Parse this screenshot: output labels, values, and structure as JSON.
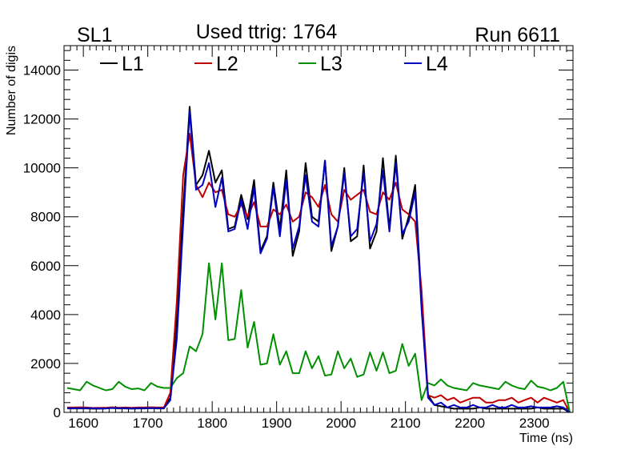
{
  "header": {
    "left": "SL1",
    "center": "Used ttrig: 1764",
    "right": "Run 6611"
  },
  "chart_data": {
    "type": "line",
    "xlabel": "Time (ns)",
    "ylabel": "Number of digis",
    "xlim": [
      1570,
      2360
    ],
    "ylim": [
      0,
      15000
    ],
    "x_ticks": [
      1600,
      1700,
      1800,
      1900,
      2000,
      2100,
      2200,
      2300
    ],
    "y_ticks": [
      0,
      2000,
      4000,
      6000,
      8000,
      10000,
      12000,
      14000
    ],
    "legend_position": "top-left",
    "grid": false,
    "x": [
      1575,
      1585,
      1595,
      1605,
      1615,
      1625,
      1635,
      1645,
      1655,
      1665,
      1675,
      1685,
      1695,
      1705,
      1715,
      1725,
      1735,
      1745,
      1755,
      1765,
      1775,
      1785,
      1795,
      1805,
      1815,
      1825,
      1835,
      1845,
      1855,
      1865,
      1875,
      1885,
      1895,
      1905,
      1915,
      1925,
      1935,
      1945,
      1955,
      1965,
      1975,
      1985,
      1995,
      2005,
      2015,
      2025,
      2035,
      2045,
      2055,
      2065,
      2075,
      2085,
      2095,
      2105,
      2115,
      2125,
      2135,
      2145,
      2155,
      2165,
      2175,
      2185,
      2195,
      2205,
      2215,
      2225,
      2235,
      2245,
      2255,
      2265,
      2275,
      2285,
      2295,
      2305,
      2315,
      2325,
      2335,
      2345,
      2355
    ],
    "series": [
      {
        "name": "L1",
        "color": "#000000",
        "values": [
          160,
          160,
          160,
          160,
          150,
          150,
          160,
          180,
          160,
          160,
          150,
          160,
          160,
          170,
          160,
          160,
          600,
          3800,
          8300,
          12500,
          9300,
          9700,
          10700,
          9400,
          9900,
          7500,
          7600,
          8900,
          7900,
          9500,
          6600,
          7200,
          9400,
          7500,
          9900,
          6400,
          7400,
          10200,
          8000,
          7800,
          10300,
          6600,
          7600,
          10000,
          7000,
          7200,
          10100,
          6700,
          7400,
          10400,
          7500,
          10500,
          7100,
          8000,
          9300,
          4500,
          700,
          300,
          250,
          200,
          150,
          150,
          150,
          150,
          200,
          150,
          150,
          150,
          150,
          150,
          150,
          150,
          150,
          200,
          150,
          150,
          150,
          150,
          0
        ]
      },
      {
        "name": "L2",
        "color": "#c00000",
        "values": [
          200,
          200,
          210,
          200,
          180,
          190,
          190,
          210,
          190,
          200,
          190,
          200,
          200,
          210,
          200,
          200,
          800,
          4500,
          9700,
          11400,
          9300,
          8800,
          9400,
          9000,
          9100,
          8100,
          8000,
          8500,
          8000,
          8600,
          7600,
          7600,
          8300,
          8100,
          8500,
          7800,
          8000,
          9000,
          8800,
          8400,
          9300,
          8100,
          7800,
          9100,
          8700,
          8900,
          9100,
          8200,
          8100,
          9000,
          8700,
          9400,
          8300,
          8100,
          7800,
          5000,
          700,
          600,
          700,
          500,
          600,
          400,
          500,
          600,
          600,
          400,
          400,
          500,
          500,
          600,
          400,
          500,
          600,
          400,
          600,
          500,
          400,
          500,
          0
        ]
      },
      {
        "name": "L3",
        "color": "#009000",
        "values": [
          1000,
          950,
          900,
          1250,
          1100,
          1000,
          900,
          950,
          1250,
          1050,
          950,
          980,
          900,
          1200,
          1050,
          1000,
          1000,
          1400,
          1600,
          2700,
          2500,
          3200,
          6100,
          3800,
          6100,
          2950,
          3000,
          5000,
          2650,
          3700,
          1950,
          2000,
          3200,
          1950,
          2500,
          1600,
          1600,
          2500,
          1800,
          2300,
          1500,
          1550,
          2500,
          1800,
          2200,
          1450,
          1550,
          2450,
          1700,
          2450,
          1600,
          1700,
          2800,
          1900,
          2400,
          500,
          1200,
          1100,
          1350,
          1100,
          1000,
          950,
          900,
          1200,
          1100,
          1050,
          1000,
          950,
          1250,
          1100,
          1000,
          950,
          1300,
          1050,
          1000,
          900,
          1000,
          1250,
          0
        ]
      },
      {
        "name": "L4",
        "color": "#0000c0",
        "values": [
          170,
          170,
          170,
          170,
          170,
          160,
          160,
          180,
          170,
          170,
          160,
          170,
          170,
          180,
          170,
          170,
          500,
          3000,
          7700,
          12300,
          9100,
          9300,
          10200,
          8400,
          9600,
          7400,
          7500,
          8700,
          7500,
          9200,
          6500,
          7100,
          9200,
          7200,
          9500,
          6700,
          7600,
          9700,
          7800,
          7600,
          10300,
          6800,
          7600,
          9800,
          7200,
          7500,
          9800,
          7000,
          7700,
          9900,
          7400,
          10200,
          7300,
          7800,
          9000,
          4200,
          600,
          300,
          400,
          200,
          300,
          200,
          200,
          300,
          200,
          200,
          300,
          200,
          200,
          300,
          200,
          200,
          250,
          200,
          200,
          200,
          250,
          200,
          0
        ]
      }
    ]
  }
}
